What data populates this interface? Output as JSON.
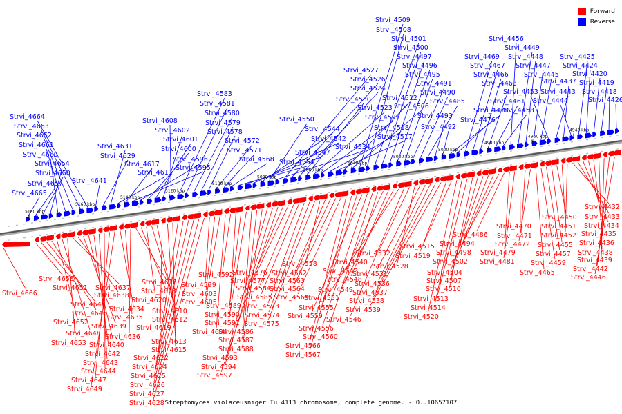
{
  "legend": {
    "forward_label": "Forward",
    "reverse_label": "Reverse",
    "forward_color": "#ff0000",
    "reverse_color": "#0000ff"
  },
  "caption": "Streptomyces violaceusniger Tu 4113 chromosome, complete genome. - 0..10657107",
  "axis": {
    "unit": "kbp",
    "ticks": [
      "5180 kbp",
      "5160 kbp",
      "5140 kbp",
      "5120 kbp",
      "5100 kbp",
      "5080 kbp",
      "5060 kbp",
      "5040 kbp",
      "5020 kbp",
      "5000 kbp",
      "4980 kbp",
      "4960 kbp",
      "4940 kbp"
    ]
  },
  "reverse_genes": [
    "Strvi_4665",
    "Strvi_4657",
    "Strvi_4650",
    "Strvi_4654",
    "Strvi_4660",
    "Strvi_4661",
    "Strvi_4662",
    "Strvi_4663",
    "Strvi_4664",
    "Strvi_4641",
    "Strvi_4629",
    "Strvi_4631",
    "Strvi_4611",
    "Strvi_4617",
    "Strvi_4595",
    "Strvi_4596",
    "Strvi_4600",
    "Strvi_4601",
    "Strvi_4602",
    "Strvi_4608",
    "Strvi_4583",
    "Strvi_4581",
    "Strvi_4580",
    "Strvi_4579",
    "Strvi_4578",
    "Strvi_4572",
    "Strvi_4571",
    "Strvi_4568",
    "Strvi_4554",
    "Strvi_4547",
    "Strvi_4542",
    "Strvi_4544",
    "Strvi_4550",
    "Strvi_4534",
    "Strvi_4527",
    "Strvi_4526",
    "Strvi_4524",
    "Strvi_4530",
    "Strvi_4523",
    "Strvi_4521",
    "Strvi_4518",
    "Strvi_4517",
    "Strvi_4512",
    "Strvi_4506",
    "Strvi_4509",
    "Strvi_4508",
    "Strvi_4501",
    "Strvi_4500",
    "Strvi_4497",
    "Strvi_4496",
    "Strvi_4495",
    "Strvi_4491",
    "Strvi_4490",
    "Strvi_4485",
    "Strvi_4493",
    "Strvi_4492",
    "Strvi_4478",
    "Strvi_4476",
    "Strvi_4469",
    "Strvi_4467",
    "Strvi_4466",
    "Strvi_4463",
    "Strvi_4461",
    "Strvi_4458",
    "Strvi_4456",
    "Strvi_4449",
    "Strvi_4448",
    "Strvi_4447",
    "Strvi_4445",
    "Strvi_4453",
    "Strvi_4443",
    "Strvi_4437",
    "Strvi_4444",
    "Strvi_4425",
    "Strvi_4424",
    "Strvi_4420",
    "Strvi_4419",
    "Strvi_4418",
    "Strvi_4426"
  ],
  "forward_genes": [
    "Strvi_4666",
    "Strvi_4656",
    "Strvi_4651",
    "Strvi_4645",
    "Strvi_4646",
    "Strvi_4652",
    "Strvi_4648",
    "Strvi_4653",
    "Strvi_4637",
    "Strvi_4638",
    "Strvi_4639",
    "Strvi_4640",
    "Strvi_4642",
    "Strvi_4643",
    "Strvi_4644",
    "Strvi_4647",
    "Strvi_4649",
    "Strvi_4634",
    "Strvi_4635",
    "Strvi_4636",
    "Strvi_4616",
    "Strvi_4618",
    "Strvi_4620",
    "Strvi_4610",
    "Strvi_4612",
    "Strvi_4619",
    "Strvi_4613",
    "Strvi_4615",
    "Strvi_4622",
    "Strvi_4624",
    "Strvi_4625",
    "Strvi_4626",
    "Strvi_4627",
    "Strvi_4628",
    "Strvi_4599",
    "Strvi_4603",
    "Strvi_4605",
    "Strvi_4604",
    "Strvi_4592",
    "Strvi_4589",
    "Strvi_4590",
    "Strvi_4591",
    "Strvi_4586",
    "Strvi_4587",
    "Strvi_4588",
    "Strvi_4593",
    "Strvi_4594",
    "Strvi_4597",
    "Strvi_4576",
    "Strvi_4577",
    "Strvi_4584",
    "Strvi_4585",
    "Strvi_4573",
    "Strvi_4574",
    "Strvi_4575",
    "Strvi_4558",
    "Strvi_4562",
    "Strvi_4563",
    "Strvi_4564",
    "Strvi_4565",
    "Strvi_4566",
    "Strvi_4567",
    "Strvi_4555",
    "Strvi_4559",
    "Strvi_4556",
    "Strvi_4560",
    "Strvi_4540",
    "Strvi_4545",
    "Strvi_4548",
    "Strvi_4549",
    "Strvi_4551",
    "Strvi_4546",
    "Strvi_4532",
    "Strvi_4528",
    "Strvi_4531",
    "Strvi_4536",
    "Strvi_4537",
    "Strvi_4538",
    "Strvi_4539",
    "Strvi_4515",
    "Strvi_4519",
    "Strvi_4520",
    "Strvi_4514",
    "Strvi_4513",
    "Strvi_4510",
    "Strvi_4507",
    "Strvi_4504",
    "Strvi_4502",
    "Strvi_4498",
    "Strvi_4494",
    "Strvi_4486",
    "Strvi_4479",
    "Strvi_4481",
    "Strvi_4470",
    "Strvi_4471",
    "Strvi_4472",
    "Strvi_4465",
    "Strvi_4459",
    "Strvi_4457",
    "Strvi_4455",
    "Strvi_4450",
    "Strvi_4451",
    "Strvi_4452",
    "Strvi_4432",
    "Strvi_4433",
    "Strvi_4434",
    "Strvi_4435",
    "Strvi_4436",
    "Strvi_4438",
    "Strvi_4439",
    "Strvi_4442",
    "Strvi_4446"
  ]
}
